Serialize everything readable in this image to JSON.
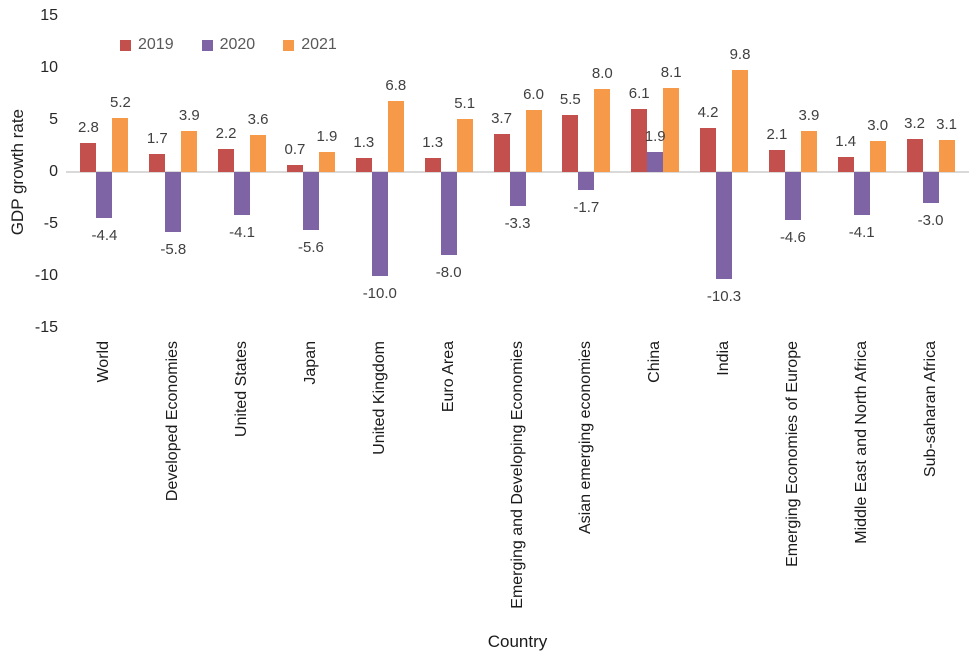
{
  "chart_data": {
    "type": "bar",
    "title": "",
    "xlabel": "Country",
    "ylabel": "GDP growth rate",
    "ylim": [
      -15,
      15
    ],
    "yticks": [
      15,
      10,
      5,
      0,
      -5,
      -10,
      -15
    ],
    "grid": false,
    "legend_position": "top-inside-left",
    "axis_line_color": "#d9d9d9",
    "data_label_color": "#404040",
    "tick_label_color": "#262626",
    "legend_text_color": "#595959",
    "categories": [
      "World",
      "Developed Economies",
      "United States",
      "Japan",
      "United Kingdom",
      "Euro Area",
      "Emerging and Developing Economies",
      "Asian emerging economies",
      "China",
      "India",
      "Emerging Economies of Europe",
      "Middle East and North Africa",
      "Sub-saharan Africa"
    ],
    "series": [
      {
        "name": "2019",
        "color": "#c4504e",
        "values": [
          2.8,
          1.7,
          2.2,
          0.7,
          1.3,
          1.3,
          3.7,
          5.5,
          6.1,
          4.2,
          2.1,
          1.4,
          3.2
        ]
      },
      {
        "name": "2020",
        "color": "#7e64a5",
        "values": [
          -4.4,
          -5.8,
          -4.1,
          -5.6,
          -10.0,
          -8.0,
          -3.3,
          -1.7,
          1.9,
          -10.3,
          -4.6,
          -4.1,
          -3.0
        ]
      },
      {
        "name": "2021",
        "color": "#f69a49",
        "values": [
          5.2,
          3.9,
          3.6,
          1.9,
          6.8,
          5.1,
          6.0,
          8.0,
          8.1,
          9.8,
          3.9,
          3.0,
          3.1
        ]
      }
    ]
  }
}
